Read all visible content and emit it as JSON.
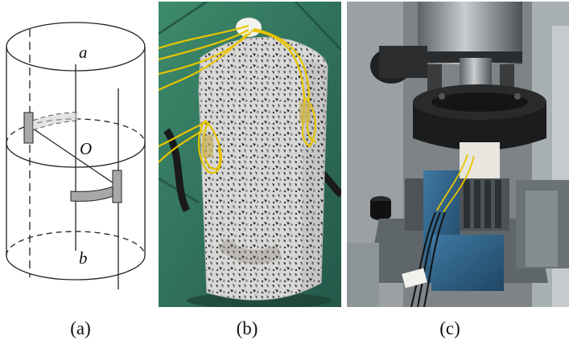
{
  "captions": {
    "a": "(a)",
    "b": "(b)",
    "c": "(c)"
  },
  "diagram_labels": {
    "top": "a",
    "center": "O",
    "bottom": "b"
  },
  "colors": {
    "line": "#222222",
    "gauge": "#a8a8a8",
    "granite_light": "#d8d8d6",
    "granite_dark": "#2a2a2a",
    "wire": "#e8c400",
    "machine_dark": "#1c1c1c",
    "steel": "#8a8f92",
    "clamp_blue": "#2d5f86",
    "floor_green": "#2e6f57"
  }
}
